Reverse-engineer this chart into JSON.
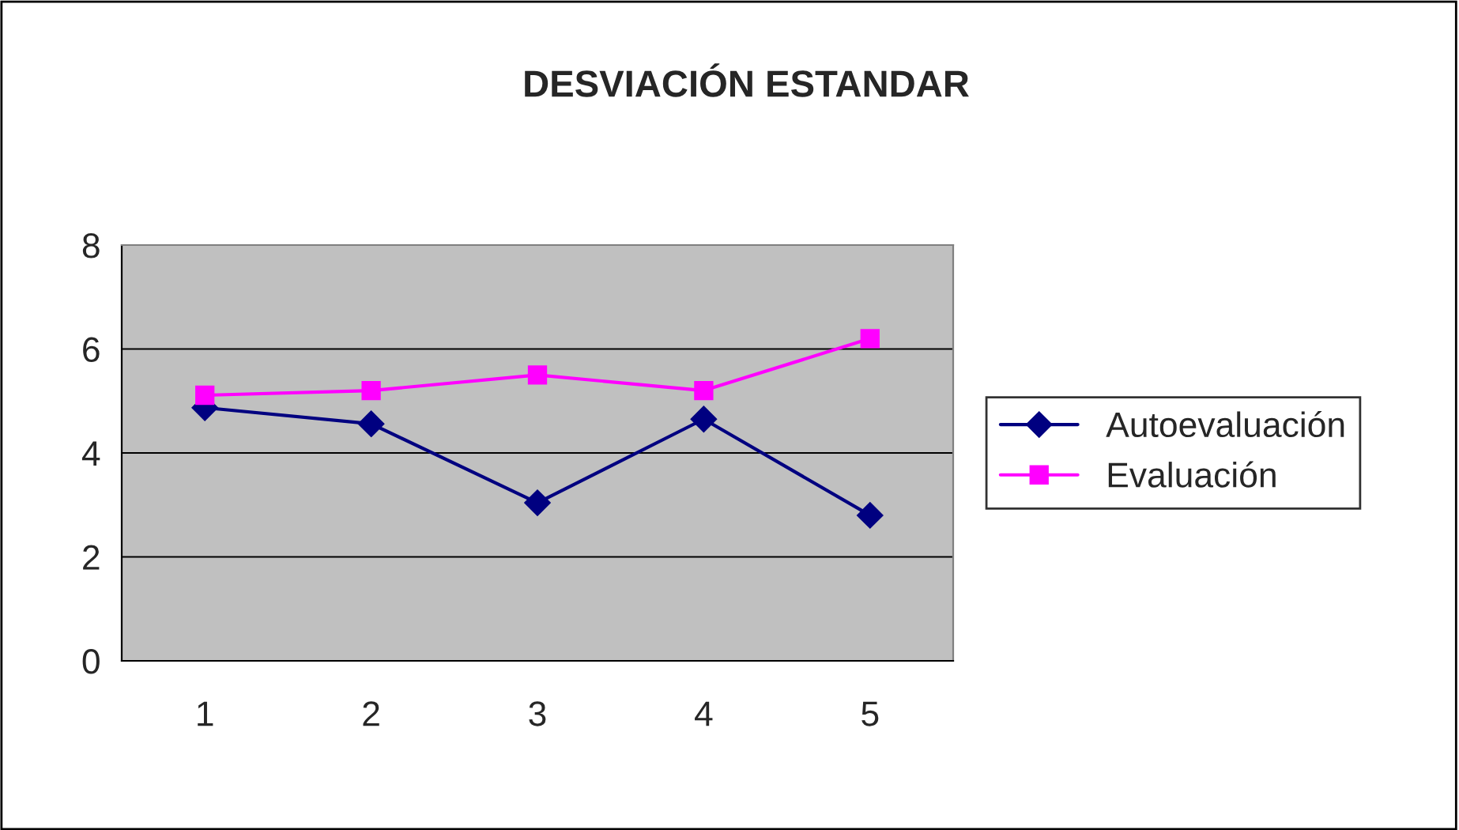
{
  "chart_data": {
    "type": "line",
    "title": "DESVIACIÓN ESTANDAR",
    "categories": [
      "1",
      "2",
      "3",
      "4",
      "5"
    ],
    "series": [
      {
        "name": "Autoevaluación",
        "color": "#000080",
        "marker": "diamond",
        "values": [
          4.87,
          4.56,
          3.04,
          4.65,
          2.8
        ]
      },
      {
        "name": "Evaluación",
        "color": "#ff00ff",
        "marker": "square",
        "values": [
          5.11,
          5.2,
          5.5,
          5.2,
          6.2
        ]
      }
    ],
    "ylim": [
      0,
      8
    ],
    "yticks": [
      0,
      2,
      4,
      6,
      8
    ],
    "grid": "y",
    "legend": "right",
    "line_style": "solid"
  }
}
